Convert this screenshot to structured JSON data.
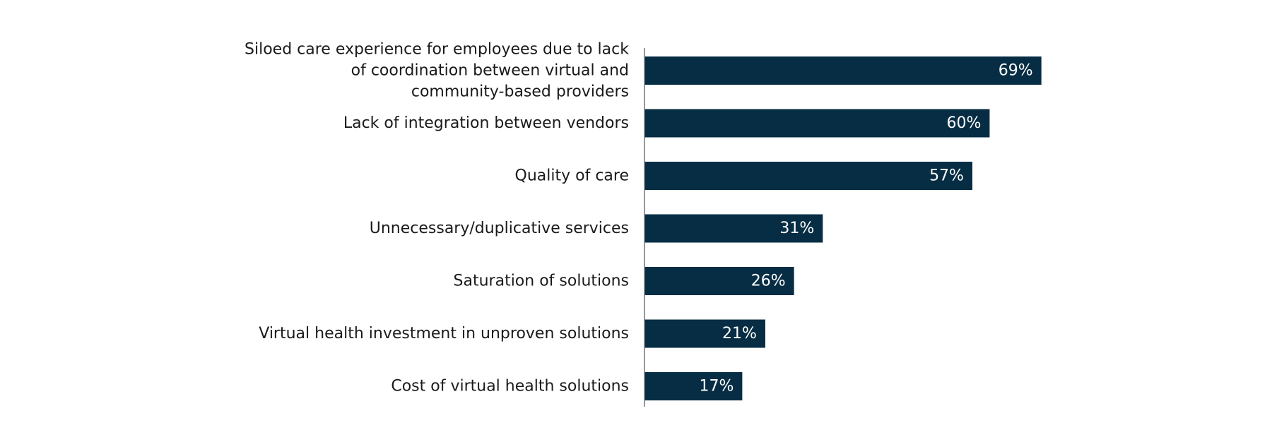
{
  "chart_data": {
    "type": "bar",
    "orientation": "horizontal",
    "categories": [
      [
        "Siloed care experience for employees due to lack",
        "of coordination between virtual and",
        "community-based providers"
      ],
      [
        "Lack of integration between vendors"
      ],
      [
        "Quality of care"
      ],
      [
        "Unnecessary/duplicative services"
      ],
      [
        "Saturation of solutions"
      ],
      [
        "Virtual health investment in unproven solutions"
      ],
      [
        "Cost of virtual health solutions"
      ]
    ],
    "values": [
      69,
      60,
      57,
      31,
      26,
      21,
      17
    ],
    "value_labels": [
      "69%",
      "60%",
      "57%",
      "31%",
      "26%",
      "21%",
      "17%"
    ],
    "value_unit": "%",
    "xlim": [
      0,
      100
    ],
    "grid": false,
    "legend": "none",
    "colors": {
      "bar": "#062d43",
      "axis": "#777777",
      "label_text": "#1a1a1a",
      "value_text": "#ffffff"
    }
  }
}
